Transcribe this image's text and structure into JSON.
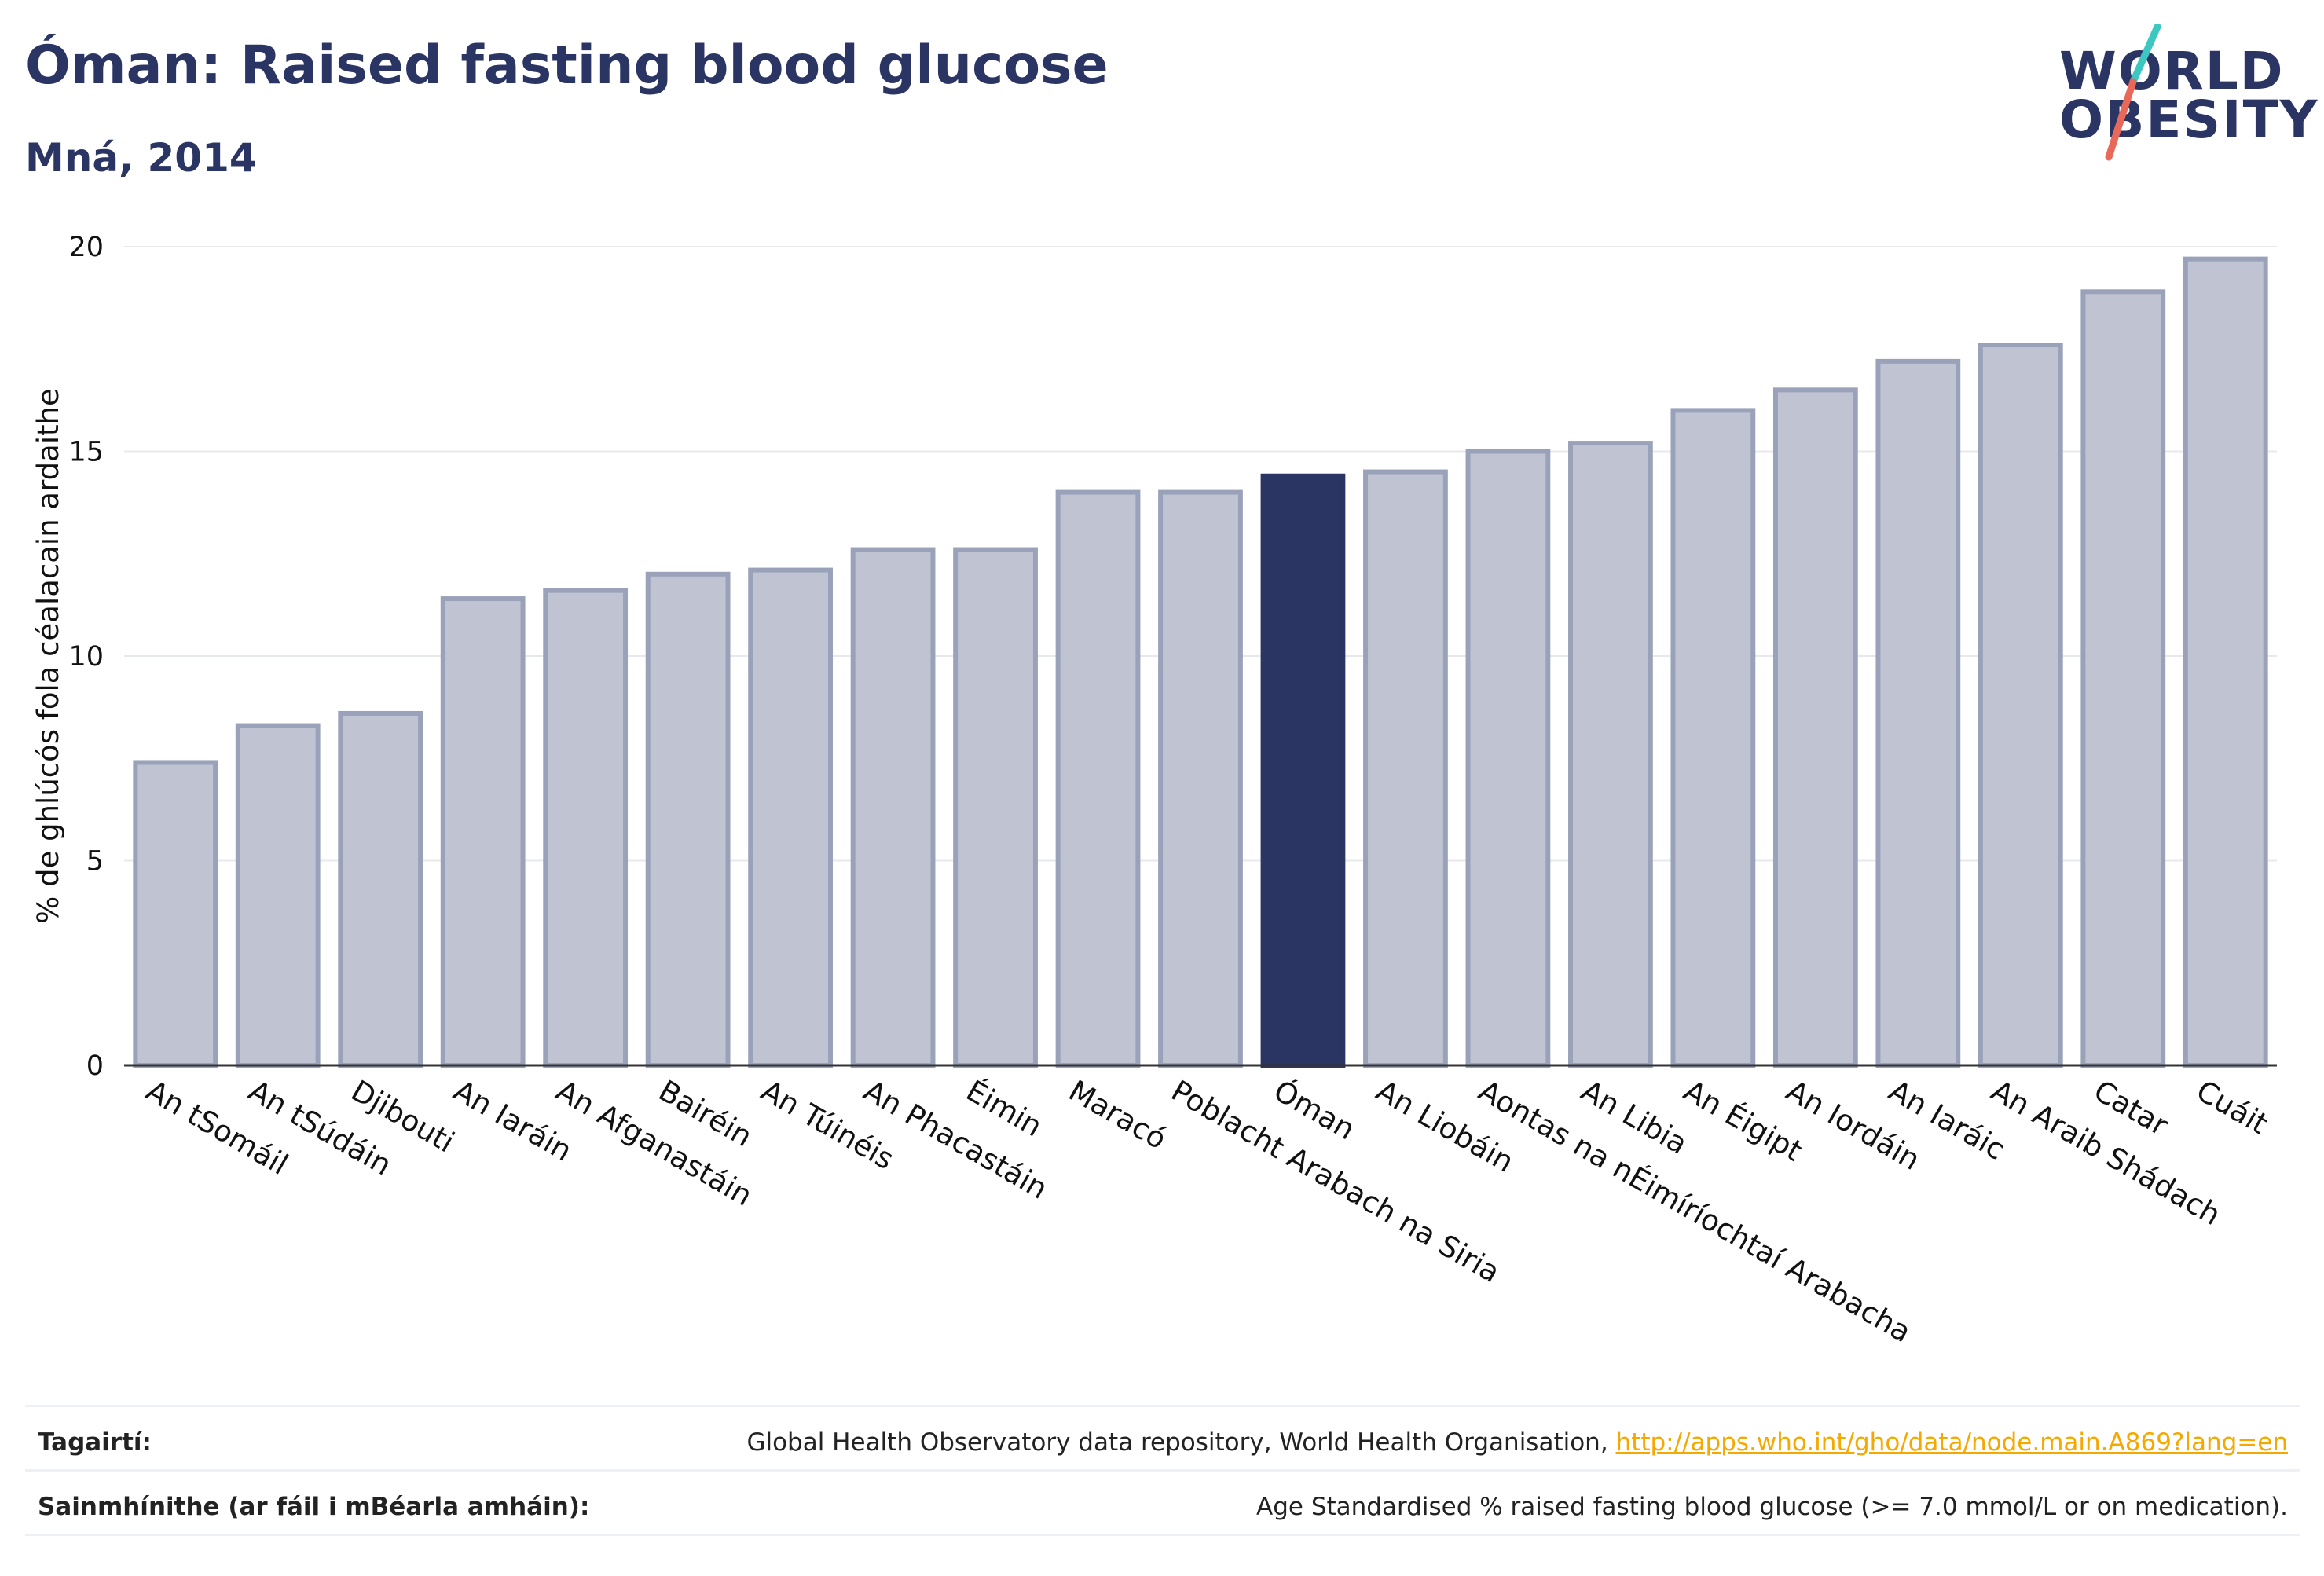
{
  "header": {
    "title": "Óman: Raised fasting blood glucose",
    "subtitle": "Mná, 2014"
  },
  "logo": {
    "line1": "WORLD",
    "line2": "OBESITY",
    "accent_colors": [
      "#3cc7c0",
      "#e8695a"
    ]
  },
  "colors": {
    "bar_default": "#c0c4d2",
    "bar_border": "#9aa2ba",
    "bar_highlight": "#2b3563",
    "grid": "#e8e9ef",
    "text": "#2b3563"
  },
  "chart_data": {
    "type": "bar",
    "ylabel": "% de ghlúcós fola céalacain ardaithe",
    "ylim": [
      0,
      20
    ],
    "yticks": [
      0,
      5,
      10,
      15,
      20
    ],
    "grid": true,
    "highlight": "Óman",
    "categories": [
      "An tSomáil",
      "An tSúdáin",
      "Djibouti",
      "An Iaráin",
      "An Afganastáin",
      "Bairéin",
      "An Túinéis",
      "An Phacastáin",
      "Éimin",
      "Maracó",
      "Poblacht Arabach na Siria",
      "Óman",
      "An Liobáin",
      "Aontas na nÉimíríochtaí Arabacha",
      "An Libia",
      "An Éigipt",
      "An Iordáin",
      "An Iaráic",
      "An Araib Shádach",
      "Catar",
      "Cuáit"
    ],
    "values": [
      7.4,
      8.3,
      8.6,
      11.4,
      11.6,
      12.0,
      12.1,
      12.6,
      12.6,
      14.0,
      14.0,
      14.4,
      14.5,
      15.0,
      15.2,
      16.0,
      16.5,
      17.2,
      17.6,
      18.9,
      19.7
    ]
  },
  "footer": {
    "references_label": "Tagairtí:",
    "references_text": "Global Health Observatory data repository, World Health Organisation, ",
    "references_link": "http://apps.who.int/gho/data/node.main.A869?lang=en",
    "definitions_label": "Sainmhínithe (ar fáil i mBéarla amháin):",
    "definitions_text": "Age Standardised % raised fasting blood glucose (>= 7.0 mmol/L or on medication)."
  }
}
